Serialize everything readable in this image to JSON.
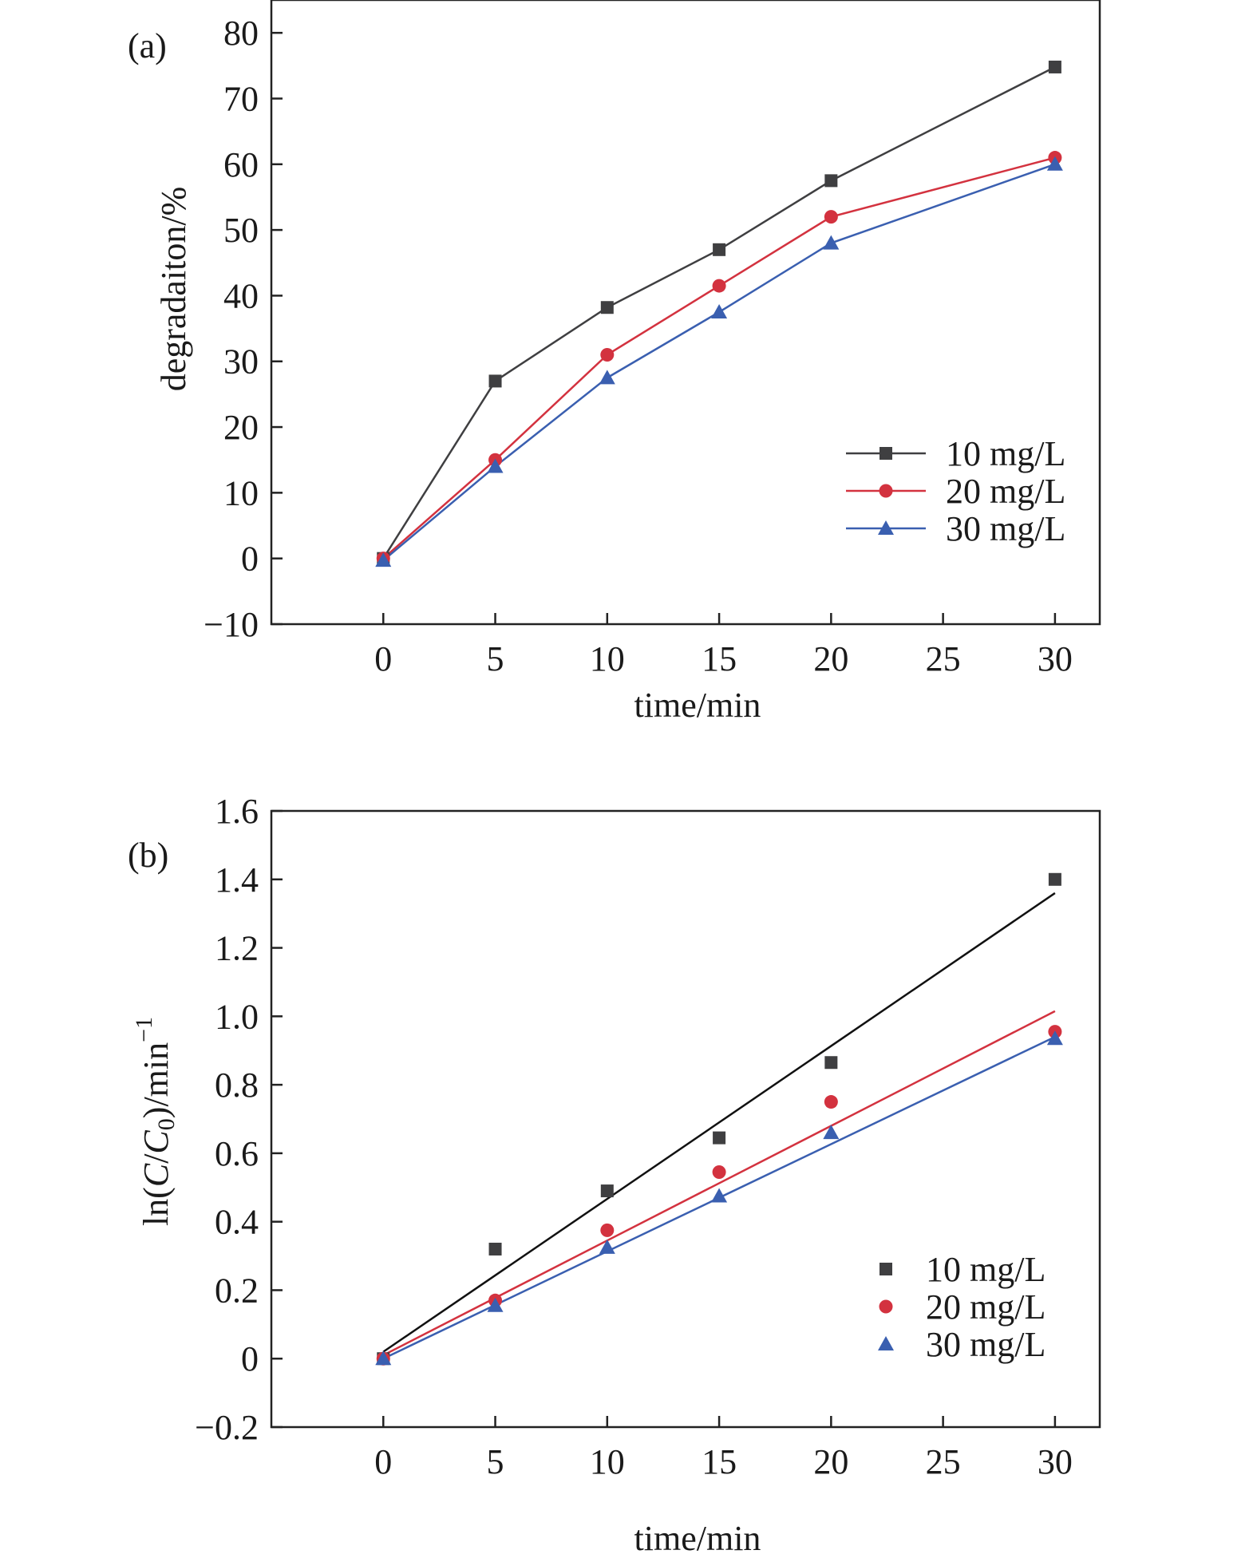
{
  "chart_data": [
    {
      "type": "line",
      "panel_label": "(a)",
      "xlabel": "time/min",
      "ylabel": "degradaiton/%",
      "xlim": [
        -5,
        32
      ],
      "ylim": [
        -10,
        85
      ],
      "x_ticks": [
        0,
        5,
        10,
        15,
        20,
        25,
        30
      ],
      "y_ticks": [
        -10,
        0,
        10,
        20,
        30,
        40,
        50,
        60,
        70,
        80
      ],
      "x_tick_labels": [
        "0",
        "5",
        "10",
        "15",
        "20",
        "25",
        "30"
      ],
      "y_tick_labels": [
        "−10",
        "0",
        "10",
        "20",
        "30",
        "40",
        "50",
        "60",
        "70",
        "80"
      ],
      "grid": false,
      "legend_position": "lower-right",
      "series": [
        {
          "name": "10 mg/L",
          "marker": "square",
          "color": "#3f3f41",
          "x": [
            0,
            5,
            10,
            15,
            20,
            30
          ],
          "y": [
            0,
            27,
            38.2,
            47,
            57.5,
            74.8
          ]
        },
        {
          "name": "20 mg/L",
          "marker": "circle",
          "color": "#d3323f",
          "x": [
            0,
            5,
            10,
            15,
            20,
            30
          ],
          "y": [
            0,
            15,
            31,
            41.5,
            52,
            61
          ]
        },
        {
          "name": "30 mg/L",
          "marker": "triangle",
          "color": "#3a5fb0",
          "x": [
            0,
            5,
            10,
            15,
            20,
            30
          ],
          "y": [
            -0.3,
            14,
            27.5,
            37.5,
            48,
            60
          ]
        }
      ]
    },
    {
      "type": "scatter",
      "panel_label": "(b)",
      "xlabel": "time/min",
      "ylabel_parts": [
        "ln(",
        "C",
        "/",
        "C",
        "0",
        ")/min",
        "−1"
      ],
      "xlim": [
        -5,
        32
      ],
      "ylim": [
        -0.2,
        1.6
      ],
      "x_ticks": [
        0,
        5,
        10,
        15,
        20,
        25,
        30
      ],
      "y_ticks": [
        -0.2,
        0,
        0.2,
        0.4,
        0.6,
        0.8,
        1.0,
        1.2,
        1.4,
        1.6
      ],
      "x_tick_labels": [
        "0",
        "5",
        "10",
        "15",
        "20",
        "25",
        "30"
      ],
      "y_tick_labels": [
        "−0.2",
        "0",
        "0.2",
        "0.4",
        "0.6",
        "0.8",
        "1.0",
        "1.2",
        "1.4",
        "1.6"
      ],
      "grid": false,
      "legend_position": "lower-right",
      "series": [
        {
          "name": "10 mg/L",
          "marker": "square",
          "color": "#3f3f41",
          "line_color": "#111111",
          "x": [
            0,
            5,
            10,
            15,
            20,
            30
          ],
          "y": [
            0,
            0.32,
            0.49,
            0.645,
            0.865,
            1.4
          ],
          "fit": [
            [
              0,
              0.02
            ],
            [
              30,
              1.36
            ]
          ]
        },
        {
          "name": "20 mg/L",
          "marker": "circle",
          "color": "#d3323f",
          "line_color": "#d3323f",
          "x": [
            0,
            5,
            10,
            15,
            20,
            30
          ],
          "y": [
            0,
            0.17,
            0.375,
            0.545,
            0.75,
            0.955
          ],
          "fit": [
            [
              0,
              0.01
            ],
            [
              30,
              1.015
            ]
          ]
        },
        {
          "name": "30 mg/L",
          "marker": "triangle",
          "color": "#3a5fb0",
          "line_color": "#3a5fb0",
          "x": [
            0,
            5,
            10,
            15,
            20,
            30
          ],
          "y": [
            0,
            0.155,
            0.325,
            0.475,
            0.66,
            0.935
          ],
          "fit": [
            [
              0,
              0
            ],
            [
              30,
              0.94
            ]
          ]
        }
      ]
    }
  ]
}
